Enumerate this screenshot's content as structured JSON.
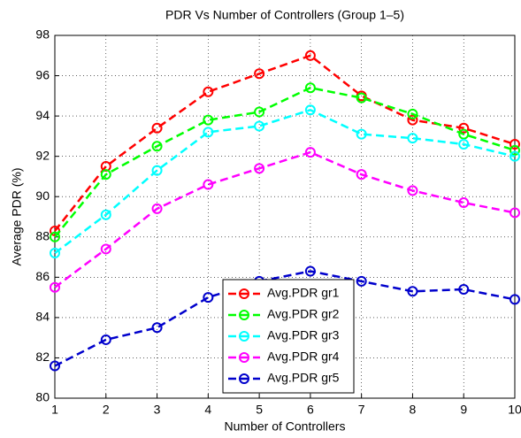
{
  "chart_data": {
    "type": "line",
    "title": "PDR Vs Number of Controllers (Group 1–5)",
    "xlabel": "Number of Controllers",
    "ylabel": "Average PDR (%)",
    "x": [
      1,
      2,
      3,
      4,
      5,
      6,
      7,
      8,
      9,
      10
    ],
    "xlim": [
      1,
      10
    ],
    "xticks": [
      1,
      2,
      3,
      4,
      5,
      6,
      7,
      8,
      9,
      10
    ],
    "ylim": [
      80,
      98
    ],
    "yticks": [
      80,
      82,
      84,
      86,
      88,
      90,
      92,
      94,
      96,
      98
    ],
    "grid": true,
    "legend": "south",
    "series": [
      {
        "name": "Avg.PDR gr1",
        "color": "#ff0000",
        "values": [
          88.3,
          91.5,
          93.4,
          95.2,
          96.1,
          97.0,
          95.0,
          93.8,
          93.4,
          92.6
        ]
      },
      {
        "name": "Avg.PDR gr2",
        "color": "#00ff00",
        "values": [
          88.0,
          91.1,
          92.5,
          93.8,
          94.2,
          95.4,
          94.9,
          94.1,
          93.1,
          92.3
        ]
      },
      {
        "name": "Avg.PDR gr3",
        "color": "#00ffff",
        "values": [
          87.2,
          89.1,
          91.3,
          93.2,
          93.5,
          94.3,
          93.1,
          92.9,
          92.6,
          92.0
        ]
      },
      {
        "name": "Avg.PDR gr4",
        "color": "#ff00ff",
        "values": [
          85.5,
          87.4,
          89.4,
          90.6,
          91.4,
          92.2,
          91.1,
          90.3,
          89.7,
          89.2
        ]
      },
      {
        "name": "Avg.PDR gr5",
        "color": "#0000cc",
        "values": [
          81.6,
          82.9,
          83.5,
          85.0,
          85.8,
          86.3,
          85.8,
          85.3,
          85.4,
          84.9
        ]
      }
    ]
  }
}
